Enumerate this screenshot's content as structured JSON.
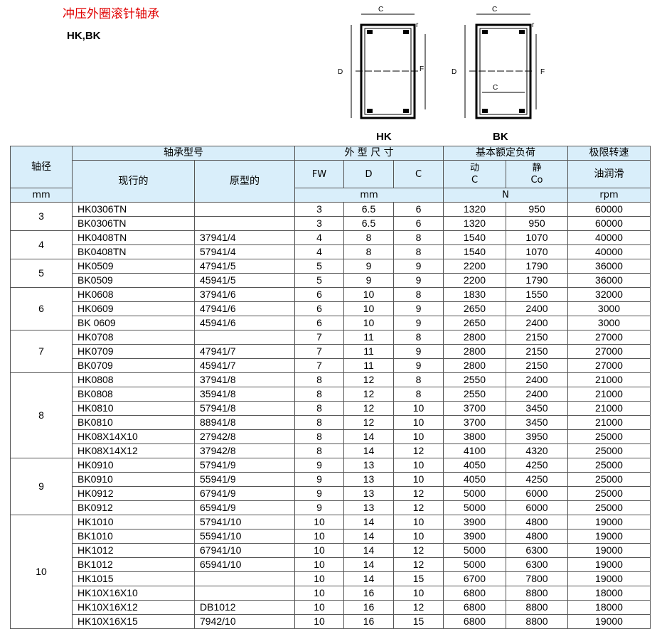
{
  "title": "冲压外圈滚针轴承",
  "subtitle": "HK,BK",
  "diagrams": {
    "hk_label": "HK",
    "bk_label": "BK",
    "dim_c": "C",
    "dim_d": "D",
    "dim_fw": "F",
    "dim_fw_sub": "w",
    "dim_rs": "r",
    "dim_rs_sub": "s",
    "dim_c1": "C",
    "dim_c1_sub": "1"
  },
  "header": {
    "shaft": "轴径",
    "model": "轴承型号",
    "current": "现行的",
    "original": "原型的",
    "dims": "外 型 尺 寸",
    "fw": "FW",
    "d": "D",
    "c": "C",
    "load": "基本额定负荷",
    "dynamic": "动",
    "dynamic_sym": "C",
    "static": "静",
    "static_sym": "Co",
    "speed": "极限转速",
    "oil": "油润滑",
    "unit_mm": "mm",
    "unit_dims": "mm",
    "unit_n": "N",
    "unit_rpm": "rpm"
  },
  "groups": [
    {
      "shaft": "3",
      "rows": [
        [
          "HK0306TN",
          "",
          "3",
          "6.5",
          "6",
          "1320",
          "950",
          "60000"
        ],
        [
          "BK0306TN",
          "",
          "3",
          "6.5",
          "6",
          "1320",
          "950",
          "60000"
        ]
      ]
    },
    {
      "shaft": "4",
      "rows": [
        [
          "HK0408TN",
          "37941/4",
          "4",
          "8",
          "8",
          "1540",
          "1070",
          "40000"
        ],
        [
          "BK0408TN",
          "57941/4",
          "4",
          "8",
          "8",
          "1540",
          "1070",
          "40000"
        ]
      ]
    },
    {
      "shaft": "5",
      "rows": [
        [
          "HK0509",
          "47941/5",
          "5",
          "9",
          "9",
          "2200",
          "1790",
          "36000"
        ],
        [
          "BK0509",
          "45941/5",
          "5",
          "9",
          "9",
          "2200",
          "1790",
          "36000"
        ]
      ]
    },
    {
      "shaft": "6",
      "rows": [
        [
          "HK0608",
          "37941/6",
          "6",
          "10",
          "8",
          "1830",
          "1550",
          "32000"
        ],
        [
          "HK0609",
          "47941/6",
          "6",
          "10",
          "9",
          "2650",
          "2400",
          "3000"
        ],
        [
          "BK 0609",
          "45941/6",
          "6",
          "10",
          "9",
          "2650",
          "2400",
          "3000"
        ]
      ]
    },
    {
      "shaft": "7",
      "rows": [
        [
          "HK0708",
          "",
          "7",
          "11",
          "8",
          "2800",
          "2150",
          "27000"
        ],
        [
          "HK0709",
          "47941/7",
          "7",
          "11",
          "9",
          "2800",
          "2150",
          "27000"
        ],
        [
          "BK0709",
          "45941/7",
          "7",
          "11",
          "9",
          "2800",
          "2150",
          "27000"
        ]
      ]
    },
    {
      "shaft": "8",
      "rows": [
        [
          "HK0808",
          "37941/8",
          "8",
          "12",
          "8",
          "2550",
          "2400",
          "21000"
        ],
        [
          "BK0808",
          "35941/8",
          "8",
          "12",
          "8",
          "2550",
          "2400",
          "21000"
        ],
        [
          "HK0810",
          "57941/8",
          "8",
          "12",
          "10",
          "3700",
          "3450",
          "21000"
        ],
        [
          "BK0810",
          "88941/8",
          "8",
          "12",
          "10",
          "3700",
          "3450",
          "21000"
        ],
        [
          "HK08X14X10",
          "27942/8",
          "8",
          "14",
          "10",
          "3800",
          "3950",
          "25000"
        ],
        [
          "HK08X14X12",
          "37942/8",
          "8",
          "14",
          "12",
          "4100",
          "4320",
          "25000"
        ]
      ]
    },
    {
      "shaft": "9",
      "rows": [
        [
          "HK0910",
          "57941/9",
          "9",
          "13",
          "10",
          "4050",
          "4250",
          "25000"
        ],
        [
          "BK0910",
          "55941/9",
          "9",
          "13",
          "10",
          "4050",
          "4250",
          "25000"
        ],
        [
          "HK0912",
          "67941/9",
          "9",
          "13",
          "12",
          "5000",
          "6000",
          "25000"
        ],
        [
          "BK0912",
          "65941/9",
          "9",
          "13",
          "12",
          "5000",
          "6000",
          "25000"
        ]
      ]
    },
    {
      "shaft": "10",
      "rows": [
        [
          "HK1010",
          "57941/10",
          "10",
          "14",
          "10",
          "3900",
          "4800",
          "19000"
        ],
        [
          "BK1010",
          "55941/10",
          "10",
          "14",
          "10",
          "3900",
          "4800",
          "19000"
        ],
        [
          "HK1012",
          "67941/10",
          "10",
          "14",
          "12",
          "5000",
          "6300",
          "19000"
        ],
        [
          "BK1012",
          "65941/10",
          "10",
          "14",
          "12",
          "5000",
          "6300",
          "19000"
        ],
        [
          "HK1015",
          "",
          "10",
          "14",
          "15",
          "6700",
          "7800",
          "19000"
        ],
        [
          "HK10X16X10",
          "",
          "10",
          "16",
          "10",
          "6800",
          "8800",
          "18000"
        ],
        [
          "HK10X16X12",
          "DB1012",
          "10",
          "16",
          "12",
          "6800",
          "8800",
          "18000"
        ],
        [
          "HK10X16X15",
          "7942/10",
          "10",
          "16",
          "15",
          "6800",
          "8800",
          "19000"
        ]
      ]
    }
  ]
}
